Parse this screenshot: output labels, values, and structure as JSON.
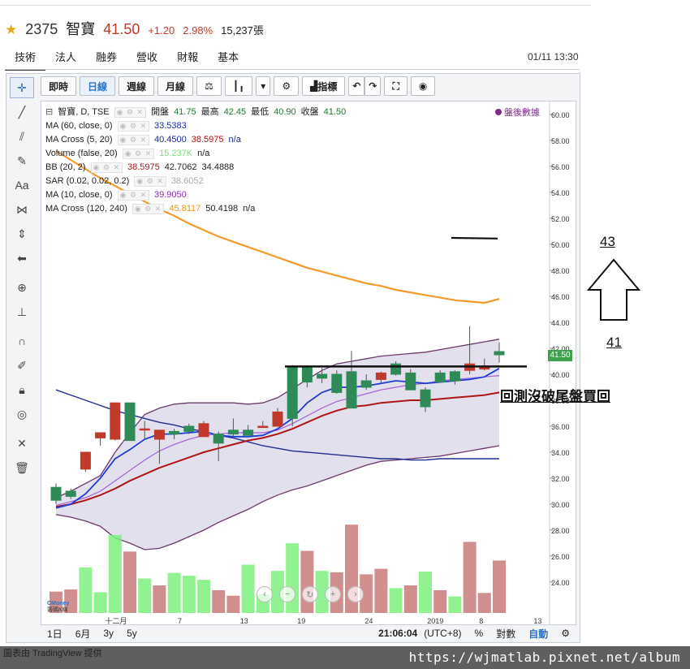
{
  "header": {
    "star_icon": "star-icon",
    "code": "2375",
    "name": "智寶",
    "price": "41.50",
    "change": "+1.20",
    "change_pct": "2.98%",
    "volume": "15,237張"
  },
  "tabs": [
    "技術",
    "法人",
    "融券",
    "營收",
    "財報",
    "基本"
  ],
  "datetime": "01/11 13:30",
  "toolbar": {
    "buttons": [
      "即時",
      "日線",
      "週線",
      "月線"
    ],
    "indicator_label": "指標"
  },
  "legend": [
    {
      "name": "智寶, D, TSE",
      "vals": [
        {
          "t": "開盤",
          "c": "#222"
        },
        {
          "t": "41.75",
          "c": "#1d7a33"
        },
        {
          "t": "最高",
          "c": "#222"
        },
        {
          "t": "42.45",
          "c": "#1d7a33"
        },
        {
          "t": "最低",
          "c": "#222"
        },
        {
          "t": "40.90",
          "c": "#1d7a33"
        },
        {
          "t": "收盤",
          "c": "#222"
        },
        {
          "t": "41.50",
          "c": "#1d7a33"
        }
      ]
    },
    {
      "name": "MA (60, close, 0)",
      "vals": [
        {
          "t": "33.5383",
          "c": "#1f2d8f"
        }
      ]
    },
    {
      "name": "MA Cross (5, 20)",
      "vals": [
        {
          "t": "40.4500",
          "c": "#1f2d8f"
        },
        {
          "t": "38.5975",
          "c": "#b01515"
        },
        {
          "t": "n/a",
          "c": "#1f2d8f"
        }
      ]
    },
    {
      "name": "Volume (false, 20)",
      "vals": [
        {
          "t": "15.237K",
          "c": "#7ddc7d"
        },
        {
          "t": "n/a",
          "c": "#222"
        }
      ]
    },
    {
      "name": "BB (20, 2)",
      "vals": [
        {
          "t": "38.5975",
          "c": "#b01515"
        },
        {
          "t": "42.7062",
          "c": "#222"
        },
        {
          "t": "34.4888",
          "c": "#222"
        }
      ]
    },
    {
      "name": "SAR (0.02, 0.02, 0.2)",
      "vals": [
        {
          "t": "38.6052",
          "c": "#aaa"
        }
      ]
    },
    {
      "name": "MA (10, close, 0)",
      "vals": [
        {
          "t": "39.9050",
          "c": "#8b2fb8"
        }
      ]
    },
    {
      "name": "MA Cross (120, 240)",
      "vals": [
        {
          "t": "45.8117",
          "c": "#f0961e"
        },
        {
          "t": "50.4198",
          "c": "#222"
        },
        {
          "t": "n/a",
          "c": "#222"
        }
      ]
    }
  ],
  "after_hours": "盤後數據",
  "y_axis_labels": [
    "60.00",
    "58.00",
    "56.00",
    "54.00",
    "52.00",
    "50.00",
    "48.00",
    "46.00",
    "44.00",
    "42.00",
    "40.00",
    "38.00",
    "36.00",
    "34.00",
    "32.00",
    "30.00",
    "28.00",
    "26.00",
    "24.00"
  ],
  "x_axis_labels": [
    "十二月",
    "7",
    "13",
    "19",
    "24",
    "2019",
    "8",
    "13"
  ],
  "price_tag": "41.50",
  "bottom_bar": {
    "left": [
      "1日",
      "6月",
      "3y",
      "5y"
    ],
    "time": "21:06:04",
    "tz": "(UTC+8)",
    "pct": "%",
    "log": "對數",
    "auto": "自動"
  },
  "logo": {
    "line1": "CMoney",
    "line2": "籌碼K線"
  },
  "annotations": {
    "text": "回測沒破尾盤買回",
    "up_target": "43",
    "up_base": "41"
  },
  "footer": {
    "url": "https://wjmatlab.pixnet.net/album",
    "left_text": "圖表由 TradingView 提供"
  },
  "colors": {
    "up": "#c0392b",
    "down": "#2e8b57",
    "ma60": "#1f2d8f",
    "ma5": "#1f3bd6",
    "ma20": "#b01515",
    "ma10": "#a462d8",
    "ma120": "#f39a2b",
    "bb_fill": "#c9c7dc",
    "vol_up": "#c97a7a",
    "vol_down": "#7ef07e"
  },
  "chart_data": {
    "type": "candlestick",
    "ylim": [
      22.0,
      61.0
    ],
    "candles": [
      {
        "o": 31.3,
        "h": 31.6,
        "l": 30.0,
        "c": 30.3
      },
      {
        "o": 31.0,
        "h": 31.2,
        "l": 30.4,
        "c": 30.6
      },
      {
        "o": 32.7,
        "h": 34.0,
        "l": 32.5,
        "c": 34.0
      },
      {
        "o": 35.1,
        "h": 35.5,
        "l": 34.5,
        "c": 35.5
      },
      {
        "o": 35.0,
        "h": 37.8,
        "l": 34.9,
        "c": 37.8
      },
      {
        "o": 37.8,
        "h": 37.8,
        "l": 34.9,
        "c": 34.9
      },
      {
        "o": 35.8,
        "h": 36.4,
        "l": 35.0,
        "c": 35.8
      },
      {
        "o": 35.0,
        "h": 35.7,
        "l": 33.1,
        "c": 35.7
      },
      {
        "o": 35.6,
        "h": 35.8,
        "l": 35.0,
        "c": 35.4
      },
      {
        "o": 36.0,
        "h": 36.2,
        "l": 35.4,
        "c": 35.6
      },
      {
        "o": 35.2,
        "h": 36.4,
        "l": 35.3,
        "c": 36.2
      },
      {
        "o": 35.4,
        "h": 35.6,
        "l": 33.3,
        "c": 34.7
      },
      {
        "o": 35.7,
        "h": 36.6,
        "l": 35.1,
        "c": 35.4
      },
      {
        "o": 35.7,
        "h": 36.1,
        "l": 35.3,
        "c": 35.3
      },
      {
        "o": 35.9,
        "h": 36.4,
        "l": 35.9,
        "c": 36.0
      },
      {
        "o": 36.0,
        "h": 37.4,
        "l": 36.3,
        "c": 37.1
      },
      {
        "o": 40.5,
        "h": 40.7,
        "l": 36.0,
        "c": 36.6
      },
      {
        "o": 40.6,
        "h": 40.7,
        "l": 39.0,
        "c": 39.4
      },
      {
        "o": 40.0,
        "h": 40.5,
        "l": 39.3,
        "c": 39.7
      },
      {
        "o": 40.0,
        "h": 40.3,
        "l": 38.5,
        "c": 38.6
      },
      {
        "o": 40.2,
        "h": 41.8,
        "l": 37.4,
        "c": 37.4
      },
      {
        "o": 39.5,
        "h": 40.0,
        "l": 38.8,
        "c": 39.0
      },
      {
        "o": 39.6,
        "h": 40.2,
        "l": 39.3,
        "c": 40.1
      },
      {
        "o": 40.8,
        "h": 41.0,
        "l": 39.9,
        "c": 40.0
      },
      {
        "o": 40.1,
        "h": 40.4,
        "l": 38.8,
        "c": 38.8
      },
      {
        "o": 38.8,
        "h": 39.0,
        "l": 37.1,
        "c": 37.5
      },
      {
        "o": 40.1,
        "h": 40.3,
        "l": 39.4,
        "c": 39.4
      },
      {
        "o": 40.2,
        "h": 40.3,
        "l": 39.2,
        "c": 39.5
      },
      {
        "o": 40.3,
        "h": 43.7,
        "l": 40.0,
        "c": 40.8
      },
      {
        "o": 40.4,
        "h": 41.2,
        "l": 40.3,
        "c": 40.6
      },
      {
        "o": 41.75,
        "h": 42.45,
        "l": 40.9,
        "c": 41.5
      }
    ],
    "volume_max": 32,
    "volume": [
      {
        "v": 3.1,
        "up": false
      },
      {
        "v": 3.4,
        "up": false
      },
      {
        "v": 6.6,
        "up": true
      },
      {
        "v": 3.0,
        "up": true
      },
      {
        "v": 11.3,
        "up": true
      },
      {
        "v": 8.9,
        "up": false
      },
      {
        "v": 5.0,
        "up": true
      },
      {
        "v": 4.0,
        "up": false
      },
      {
        "v": 5.8,
        "up": true
      },
      {
        "v": 5.4,
        "up": true
      },
      {
        "v": 4.8,
        "up": true
      },
      {
        "v": 3.3,
        "up": false
      },
      {
        "v": 2.5,
        "up": false
      },
      {
        "v": 7.0,
        "up": true
      },
      {
        "v": 2.7,
        "up": true
      },
      {
        "v": 6.1,
        "up": true
      },
      {
        "v": 10.1,
        "up": true
      },
      {
        "v": 9.0,
        "up": false
      },
      {
        "v": 6.1,
        "up": true
      },
      {
        "v": 5.9,
        "up": false
      },
      {
        "v": 12.8,
        "up": false
      },
      {
        "v": 5.6,
        "up": false
      },
      {
        "v": 6.4,
        "up": false
      },
      {
        "v": 3.6,
        "up": true
      },
      {
        "v": 4.0,
        "up": false
      },
      {
        "v": 6.0,
        "up": true
      },
      {
        "v": 3.3,
        "up": false
      },
      {
        "v": 2.4,
        "up": true
      },
      {
        "v": 10.3,
        "up": false
      },
      {
        "v": 2.9,
        "up": false
      },
      {
        "v": 7.6,
        "up": false
      }
    ],
    "ma5": [
      29.7,
      30.0,
      30.8,
      32.0,
      33.5,
      34.2,
      35.0,
      35.4,
      35.4,
      35.5,
      35.6,
      35.3,
      35.2,
      35.2,
      35.3,
      35.8,
      36.6,
      37.8,
      38.6,
      39.0,
      39.0,
      39.1,
      39.3,
      39.5,
      39.4,
      39.3,
      39.4,
      39.5,
      39.6,
      39.8,
      40.45
    ],
    "ma10": [
      29.9,
      30.2,
      30.5,
      31.0,
      31.8,
      32.6,
      33.4,
      34.1,
      34.6,
      35.0,
      35.3,
      35.4,
      35.5,
      35.5,
      35.5,
      35.7,
      36.2,
      36.8,
      37.4,
      37.9,
      38.2,
      38.5,
      38.8,
      39.0,
      39.2,
      39.3,
      39.5,
      39.6,
      39.7,
      39.8,
      39.9
    ],
    "ma20": [
      29.8,
      30.0,
      30.3,
      30.7,
      31.2,
      31.8,
      32.3,
      32.8,
      33.2,
      33.6,
      34.0,
      34.3,
      34.6,
      34.9,
      35.1,
      35.4,
      35.8,
      36.3,
      36.8,
      37.2,
      37.5,
      37.6,
      37.8,
      37.9,
      38.0,
      38.0,
      38.1,
      38.2,
      38.3,
      38.4,
      38.6
    ],
    "bb_upper": [
      30.5,
      31.0,
      31.6,
      32.2,
      34.0,
      35.5,
      36.9,
      37.4,
      37.7,
      37.8,
      37.8,
      37.8,
      37.8,
      37.7,
      37.8,
      38.2,
      38.9,
      39.6,
      40.3,
      40.8,
      41.0,
      41.2,
      41.4,
      41.5,
      41.6,
      41.7,
      41.9,
      42.1,
      42.3,
      42.5,
      42.7
    ],
    "bb_lower": [
      29.2,
      29.0,
      28.7,
      28.3,
      27.4,
      27.0,
      26.5,
      26.6,
      27.0,
      27.5,
      28.0,
      28.6,
      29.1,
      29.6,
      30.2,
      30.7,
      31.1,
      31.4,
      31.8,
      32.2,
      32.6,
      33.0,
      33.3,
      33.4,
      33.5,
      33.6,
      33.7,
      33.9,
      34.1,
      34.3,
      34.5
    ],
    "ma60": [
      38.8,
      38.4,
      38.0,
      37.6,
      37.2,
      36.9,
      36.6,
      36.3,
      36.1,
      35.8,
      35.6,
      35.3,
      35.1,
      34.8,
      34.5,
      34.3,
      34.1,
      34.0,
      33.9,
      33.8,
      33.7,
      33.6,
      33.5,
      33.5,
      33.4,
      33.4,
      33.5,
      33.5,
      33.5,
      33.5,
      33.5
    ],
    "ma120": [
      57.2,
      56.5,
      55.8,
      55.1,
      54.5,
      53.9,
      53.3,
      52.7,
      52.2,
      51.6,
      51.1,
      50.6,
      50.2,
      49.8,
      49.4,
      49.0,
      48.6,
      48.2,
      47.9,
      47.6,
      47.3,
      47.0,
      46.8,
      46.5,
      46.3,
      46.1,
      45.9,
      45.7,
      45.6,
      45.5,
      45.8
    ]
  }
}
